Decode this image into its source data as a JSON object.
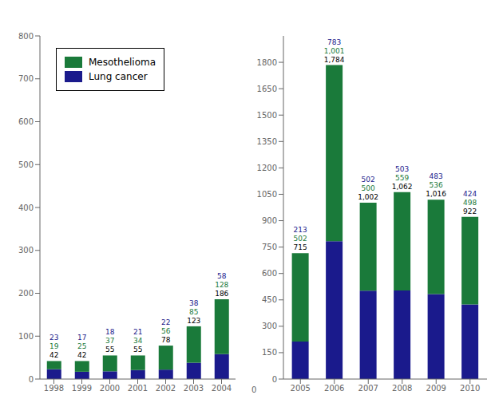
{
  "chart_data": [
    {
      "type": "bar",
      "stacked": true,
      "data_labels": true,
      "categories": [
        "1998",
        "1999",
        "2000",
        "2001",
        "2002",
        "2003",
        "2004"
      ],
      "series": [
        {
          "name": "Lung cancer",
          "color": "#1a1a8c",
          "values": [
            23,
            17,
            18,
            21,
            22,
            38,
            58
          ]
        },
        {
          "name": "Mesothelioma",
          "color": "#1a7a3a",
          "values": [
            19,
            25,
            37,
            34,
            56,
            85,
            128
          ]
        }
      ],
      "totals": {
        "color": "#000000",
        "values": [
          42,
          42,
          55,
          55,
          78,
          123,
          186
        ]
      },
      "ylim": [
        0,
        800
      ],
      "yticks": [
        0,
        100,
        200,
        300,
        400,
        500,
        600,
        700,
        800
      ],
      "legend": "upper left"
    },
    {
      "type": "bar",
      "stacked": true,
      "data_labels": true,
      "categories": [
        "2005",
        "2006",
        "2007",
        "2008",
        "2009",
        "2010"
      ],
      "series": [
        {
          "color": "#1a1a8c",
          "values": [
            213,
            783,
            502,
            503,
            483,
            424
          ]
        },
        {
          "color": "#1a7a3a",
          "values": [
            502,
            1001,
            500,
            559,
            536,
            498
          ],
          "value_labels": [
            "502",
            "1,001",
            "500",
            "559",
            "536",
            "498"
          ]
        }
      ],
      "totals": {
        "color": "#000000",
        "values": [
          715,
          1784,
          1002,
          1062,
          1016,
          922
        ],
        "value_labels": [
          "715",
          "1,784",
          "1,002",
          "1,062",
          "1,016",
          "922"
        ]
      },
      "ylim": [
        0,
        1950
      ],
      "yticks": [
        0,
        150,
        300,
        450,
        600,
        750,
        900,
        1050,
        1200,
        1350,
        1500,
        1650,
        1800
      ],
      "annotation": "0"
    }
  ]
}
